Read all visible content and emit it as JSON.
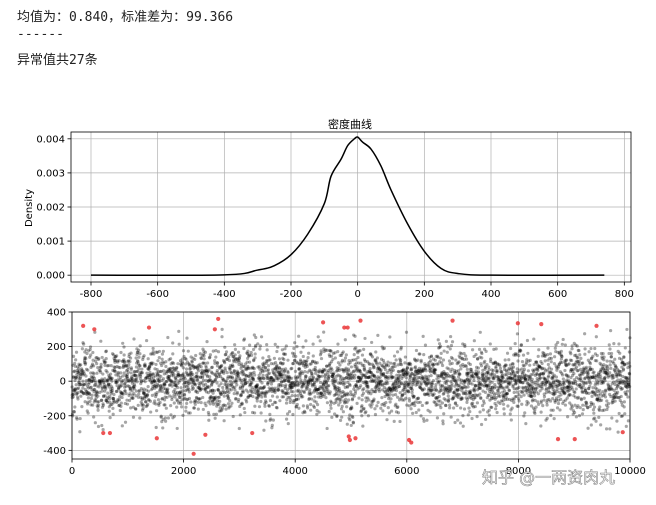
{
  "output": {
    "stats_line": "均值为：0.840，标准差为：99.366",
    "separator": "------",
    "anomaly_line": "异常值共27条"
  },
  "watermark": "知乎 @一两资肉丸",
  "colors": {
    "density_line": "#000000",
    "normal_points": "#000000",
    "anomaly_points": "#e8292b",
    "grid": "#b0b0b0"
  },
  "chart_data": [
    {
      "type": "line",
      "title": "密度曲线",
      "xlabel": "",
      "ylabel": "Density",
      "xlim": [
        -860,
        820
      ],
      "ylim": [
        -0.0002,
        0.0042
      ],
      "xticks": [
        -800,
        -600,
        -400,
        -200,
        0,
        200,
        400,
        600,
        800
      ],
      "yticks": [
        0.0,
        0.001,
        0.002,
        0.003,
        0.004
      ],
      "ytick_labels": [
        "0.000",
        "0.001",
        "0.002",
        "0.003",
        "0.004"
      ],
      "grid": true,
      "series": [
        {
          "x": [
            -800,
            -400,
            -300,
            -250,
            -200,
            -150,
            -100,
            -80,
            -50,
            -30,
            -10,
            0,
            15,
            40,
            70,
            100,
            150,
            200,
            250,
            300,
            400,
            740
          ],
          "values": [
            0.0,
            1e-05,
            0.00015,
            0.00028,
            0.0006,
            0.0012,
            0.0021,
            0.0029,
            0.0034,
            0.0038,
            0.004,
            0.00405,
            0.0039,
            0.0037,
            0.0032,
            0.0025,
            0.0015,
            0.0007,
            0.0002,
            5e-05,
            0.0,
            0.0
          ]
        }
      ]
    },
    {
      "type": "scatter",
      "title": "",
      "xlabel": "",
      "ylabel": "",
      "xlim": [
        0,
        10000
      ],
      "ylim": [
        -450,
        400
      ],
      "xticks": [
        0,
        2000,
        4000,
        6000,
        8000,
        10000
      ],
      "yticks": [
        -400,
        -200,
        0,
        200,
        400
      ],
      "grid": true,
      "normal_points": {
        "count": 10000,
        "mean": 0.84,
        "std": 99.366,
        "note_range": [
          -300,
          300
        ]
      },
      "anomalies": [
        {
          "x": 200,
          "y": 320
        },
        {
          "x": 400,
          "y": 300
        },
        {
          "x": 560,
          "y": -300
        },
        {
          "x": 680,
          "y": -300
        },
        {
          "x": 1380,
          "y": 310
        },
        {
          "x": 1520,
          "y": -330
        },
        {
          "x": 2180,
          "y": -420
        },
        {
          "x": 2390,
          "y": -310
        },
        {
          "x": 2560,
          "y": 300
        },
        {
          "x": 2620,
          "y": 360
        },
        {
          "x": 3230,
          "y": -300
        },
        {
          "x": 4500,
          "y": 340
        },
        {
          "x": 4880,
          "y": 310
        },
        {
          "x": 4940,
          "y": 310
        },
        {
          "x": 4960,
          "y": -320
        },
        {
          "x": 4980,
          "y": -340
        },
        {
          "x": 5080,
          "y": -330
        },
        {
          "x": 5170,
          "y": 350
        },
        {
          "x": 6040,
          "y": -340
        },
        {
          "x": 6080,
          "y": -355
        },
        {
          "x": 6820,
          "y": 350
        },
        {
          "x": 7990,
          "y": 335
        },
        {
          "x": 8410,
          "y": 330
        },
        {
          "x": 8710,
          "y": -335
        },
        {
          "x": 9010,
          "y": -335
        },
        {
          "x": 9400,
          "y": 320
        },
        {
          "x": 9870,
          "y": -295
        }
      ]
    }
  ]
}
